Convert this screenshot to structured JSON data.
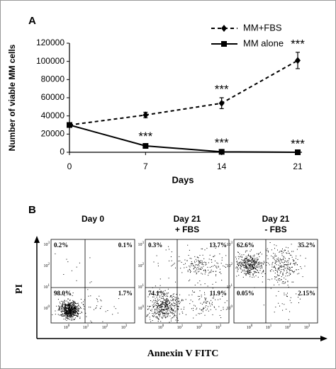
{
  "chart_data": {
    "type": "line",
    "label": "A",
    "x_label": "Days",
    "y_label": "Number of viable MM cells",
    "x": [
      0,
      7,
      14,
      21
    ],
    "xlim": [
      0,
      21
    ],
    "xticks": [
      0,
      7,
      14,
      21
    ],
    "ylim": [
      0,
      120000
    ],
    "yticks": [
      0,
      20000,
      40000,
      60000,
      80000,
      100000,
      120000
    ],
    "series": [
      {
        "name": "MM+FBS",
        "color": "#000000",
        "dashed": true,
        "marker": "diamond",
        "values": [
          30000,
          41000,
          54000,
          101000
        ],
        "errors": [
          null,
          3000,
          6000,
          9000
        ],
        "significance": [
          null,
          null,
          "***",
          "***"
        ]
      },
      {
        "name": "MM alone",
        "color": "#000000",
        "dashed": false,
        "marker": "square",
        "values": [
          30000,
          7000,
          500,
          0
        ],
        "errors": [
          null,
          1000,
          500,
          null
        ],
        "significance": [
          null,
          "***",
          "***",
          "***"
        ]
      }
    ],
    "legend": "top-right"
  },
  "panel_b": {
    "label": "B",
    "y_label": "PI",
    "x_label": "Annexin V FITC",
    "tick_base": "10",
    "tick_exponents": [
      "0",
      "1",
      "2",
      "3"
    ],
    "plots": [
      {
        "title": [
          "Day 0"
        ],
        "quadrants": [
          "0.2%",
          "0.1%",
          "98.0%",
          "1.7%"
        ]
      },
      {
        "title": [
          "Day 21",
          "+ FBS"
        ],
        "quadrants": [
          "0.3%",
          "13.7%",
          "74.1%",
          "11.9%"
        ]
      },
      {
        "title": [
          "Day 21",
          "- FBS"
        ],
        "quadrants": [
          "62.6%",
          "35.2%",
          "0.05%",
          "2.15%"
        ]
      }
    ]
  }
}
